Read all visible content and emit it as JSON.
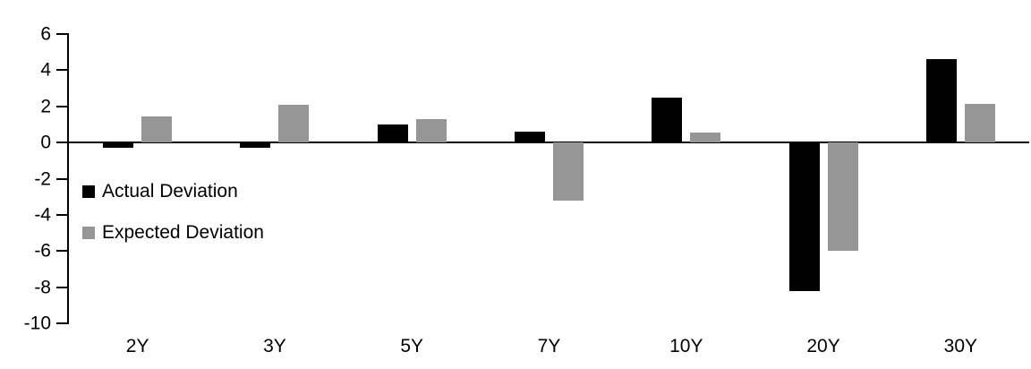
{
  "chart_data": {
    "type": "bar",
    "title": "",
    "xlabel": "",
    "ylabel": "",
    "categories": [
      "2Y",
      "3Y",
      "5Y",
      "7Y",
      "10Y",
      "20Y",
      "30Y"
    ],
    "series": [
      {
        "name": "Actual Deviation",
        "color": "#000000",
        "values": [
          -0.3,
          -0.3,
          1.0,
          0.6,
          2.5,
          -8.2,
          4.6
        ]
      },
      {
        "name": "Expected Deviation",
        "color": "#969696",
        "values": [
          1.45,
          2.1,
          1.3,
          -3.2,
          0.55,
          -6.0,
          2.15
        ]
      }
    ],
    "ylim": [
      -10,
      6
    ],
    "y_ticks": [
      6,
      4,
      2,
      0,
      -2,
      -4,
      -6,
      -8,
      -10
    ],
    "grid": false,
    "legend_position": "inside-left",
    "axis_color": "#000000",
    "background_color": "#ffffff"
  }
}
